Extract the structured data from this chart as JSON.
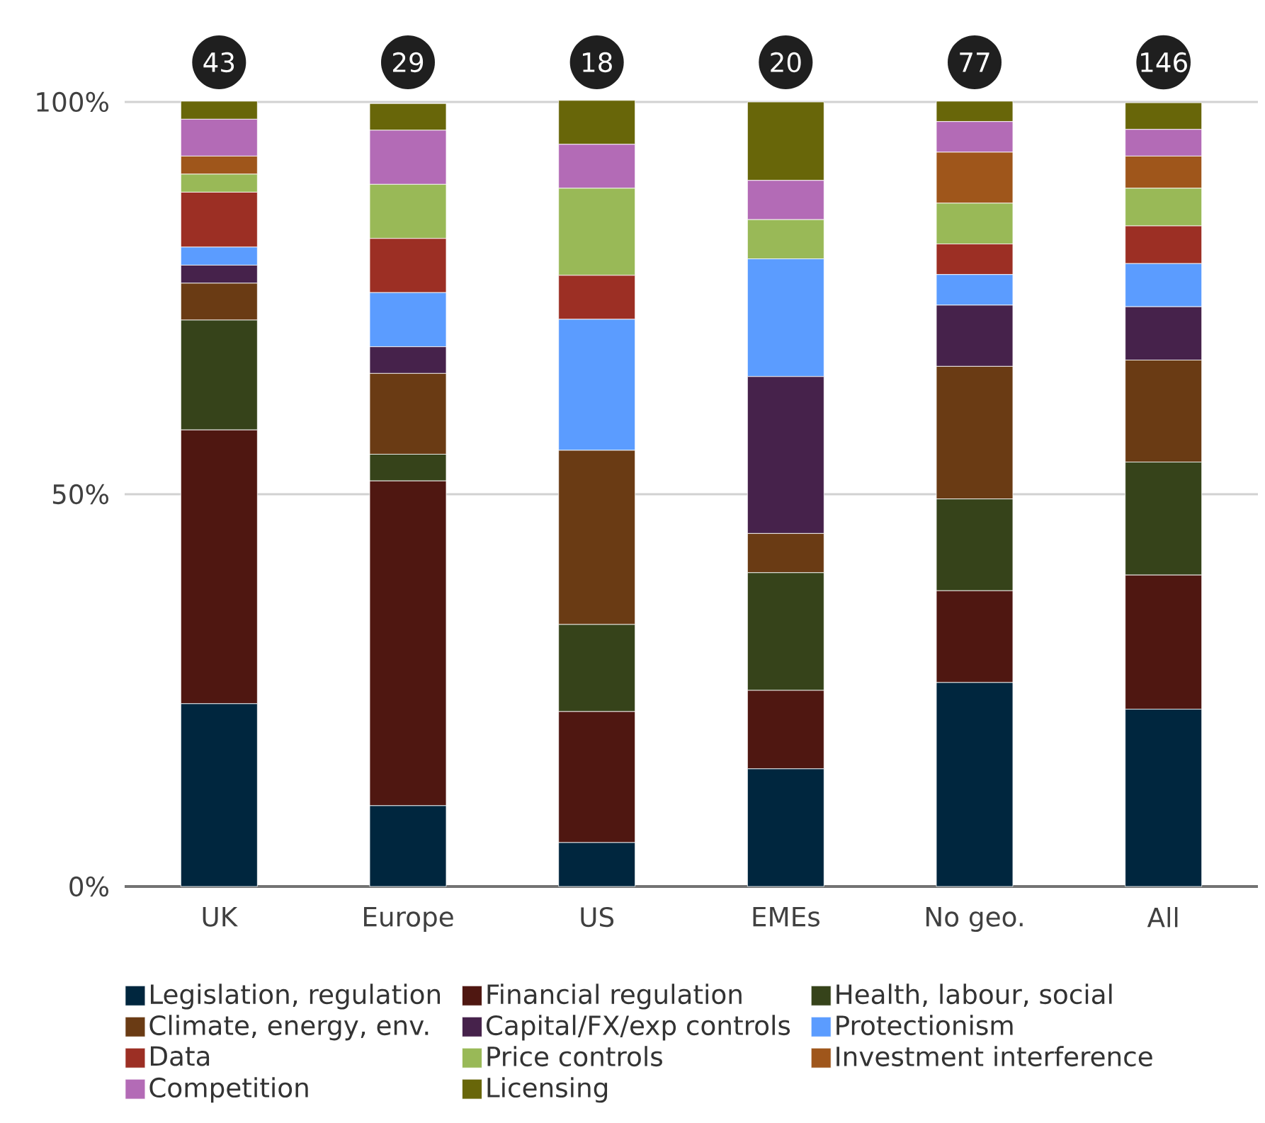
{
  "chart_data": {
    "type": "bar",
    "stacked": true,
    "categories": [
      "UK",
      "Europe",
      "US",
      "EMEs",
      "No geo.",
      "All"
    ],
    "series": [
      {
        "name": "Legislation, regulation",
        "color": "#00263e",
        "values": [
          23.3,
          10.3,
          5.6,
          15.0,
          26.0,
          22.6
        ]
      },
      {
        "name": "Financial regulation",
        "color": "#4f1711",
        "values": [
          34.9,
          41.4,
          16.7,
          10.0,
          11.7,
          17.1
        ]
      },
      {
        "name": "Health, labour, social",
        "color": "#36431a",
        "values": [
          14.0,
          3.4,
          11.1,
          15.0,
          11.7,
          14.4
        ]
      },
      {
        "name": "Climate, energy, env.",
        "color": "#6a3b14",
        "values": [
          4.7,
          10.3,
          22.2,
          5.0,
          16.9,
          13.0
        ]
      },
      {
        "name": "Capital/FX/exp controls",
        "color": "#46224b",
        "values": [
          2.3,
          3.4,
          0,
          20.0,
          7.8,
          6.8
        ]
      },
      {
        "name": "Protectionism",
        "color": "#5b9cff",
        "values": [
          2.3,
          6.9,
          16.7,
          15.0,
          3.9,
          5.5
        ]
      },
      {
        "name": "Data",
        "color": "#9c2f24",
        "values": [
          7.0,
          6.9,
          5.6,
          0,
          3.9,
          4.8
        ]
      },
      {
        "name": "Price controls",
        "color": "#99b957",
        "values": [
          2.3,
          6.9,
          11.1,
          5.0,
          5.2,
          4.8
        ]
      },
      {
        "name": "Investment interference",
        "color": "#9f561b",
        "values": [
          2.3,
          0,
          0,
          0,
          6.5,
          4.1
        ]
      },
      {
        "name": "Competition",
        "color": "#b36bb6",
        "values": [
          4.7,
          6.9,
          5.6,
          5.0,
          3.9,
          3.4
        ]
      },
      {
        "name": "Licensing",
        "color": "#686609",
        "values": [
          2.3,
          3.4,
          5.6,
          10.0,
          2.6,
          3.4
        ]
      }
    ],
    "ylim": [
      0,
      100
    ],
    "yticks": [
      {
        "value": 0,
        "label": "0%"
      },
      {
        "value": 50,
        "label": "50%"
      },
      {
        "value": 100,
        "label": "100%"
      }
    ],
    "grid": "y",
    "legend": "bottom",
    "annotations": [
      "43",
      "29",
      "18",
      "20",
      "77",
      "146"
    ]
  }
}
